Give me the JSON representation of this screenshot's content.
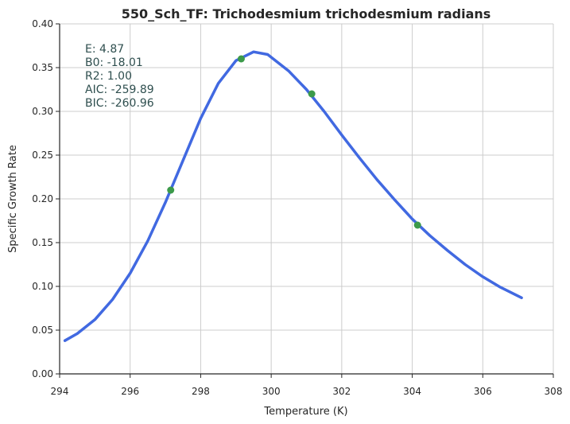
{
  "chart_data": {
    "type": "line",
    "title": "550_Sch_TF: Trichodesmium trichodesmium radians",
    "xlabel": "Temperature (K)",
    "ylabel": "Specific Growth Rate",
    "xlim": [
      294,
      308
    ],
    "ylim": [
      0.0,
      0.4
    ],
    "xticks": [
      "294",
      "296",
      "298",
      "300",
      "302",
      "304",
      "306",
      "308"
    ],
    "yticks": [
      "0.00",
      "0.05",
      "0.10",
      "0.15",
      "0.20",
      "0.25",
      "0.30",
      "0.35",
      "0.40"
    ],
    "grid": true,
    "series": [
      {
        "kind": "line",
        "color": "#4169e1",
        "x": [
          294.15,
          294.5,
          295.0,
          295.5,
          296.0,
          296.5,
          297.0,
          297.5,
          298.0,
          298.5,
          299.0,
          299.5,
          299.9,
          300.5,
          301.0,
          301.5,
          302.0,
          302.5,
          303.0,
          303.5,
          304.0,
          304.5,
          305.0,
          305.5,
          306.0,
          306.5,
          307.1
        ],
        "y": [
          0.038,
          0.046,
          0.062,
          0.085,
          0.115,
          0.152,
          0.196,
          0.244,
          0.292,
          0.332,
          0.358,
          0.368,
          0.365,
          0.346,
          0.325,
          0.3,
          0.273,
          0.247,
          0.222,
          0.199,
          0.177,
          0.158,
          0.141,
          0.125,
          0.111,
          0.099,
          0.087
        ]
      },
      {
        "kind": "scatter",
        "color": "#3c9a4a",
        "x": [
          297.15,
          299.15,
          301.15,
          304.15
        ],
        "y": [
          0.21,
          0.36,
          0.32,
          0.17
        ]
      }
    ],
    "annotations": [
      "E:  4.87",
      "B0:  -18.01",
      "R2:  1.00",
      "AIC: -259.89",
      "BIC: -260.96"
    ]
  }
}
